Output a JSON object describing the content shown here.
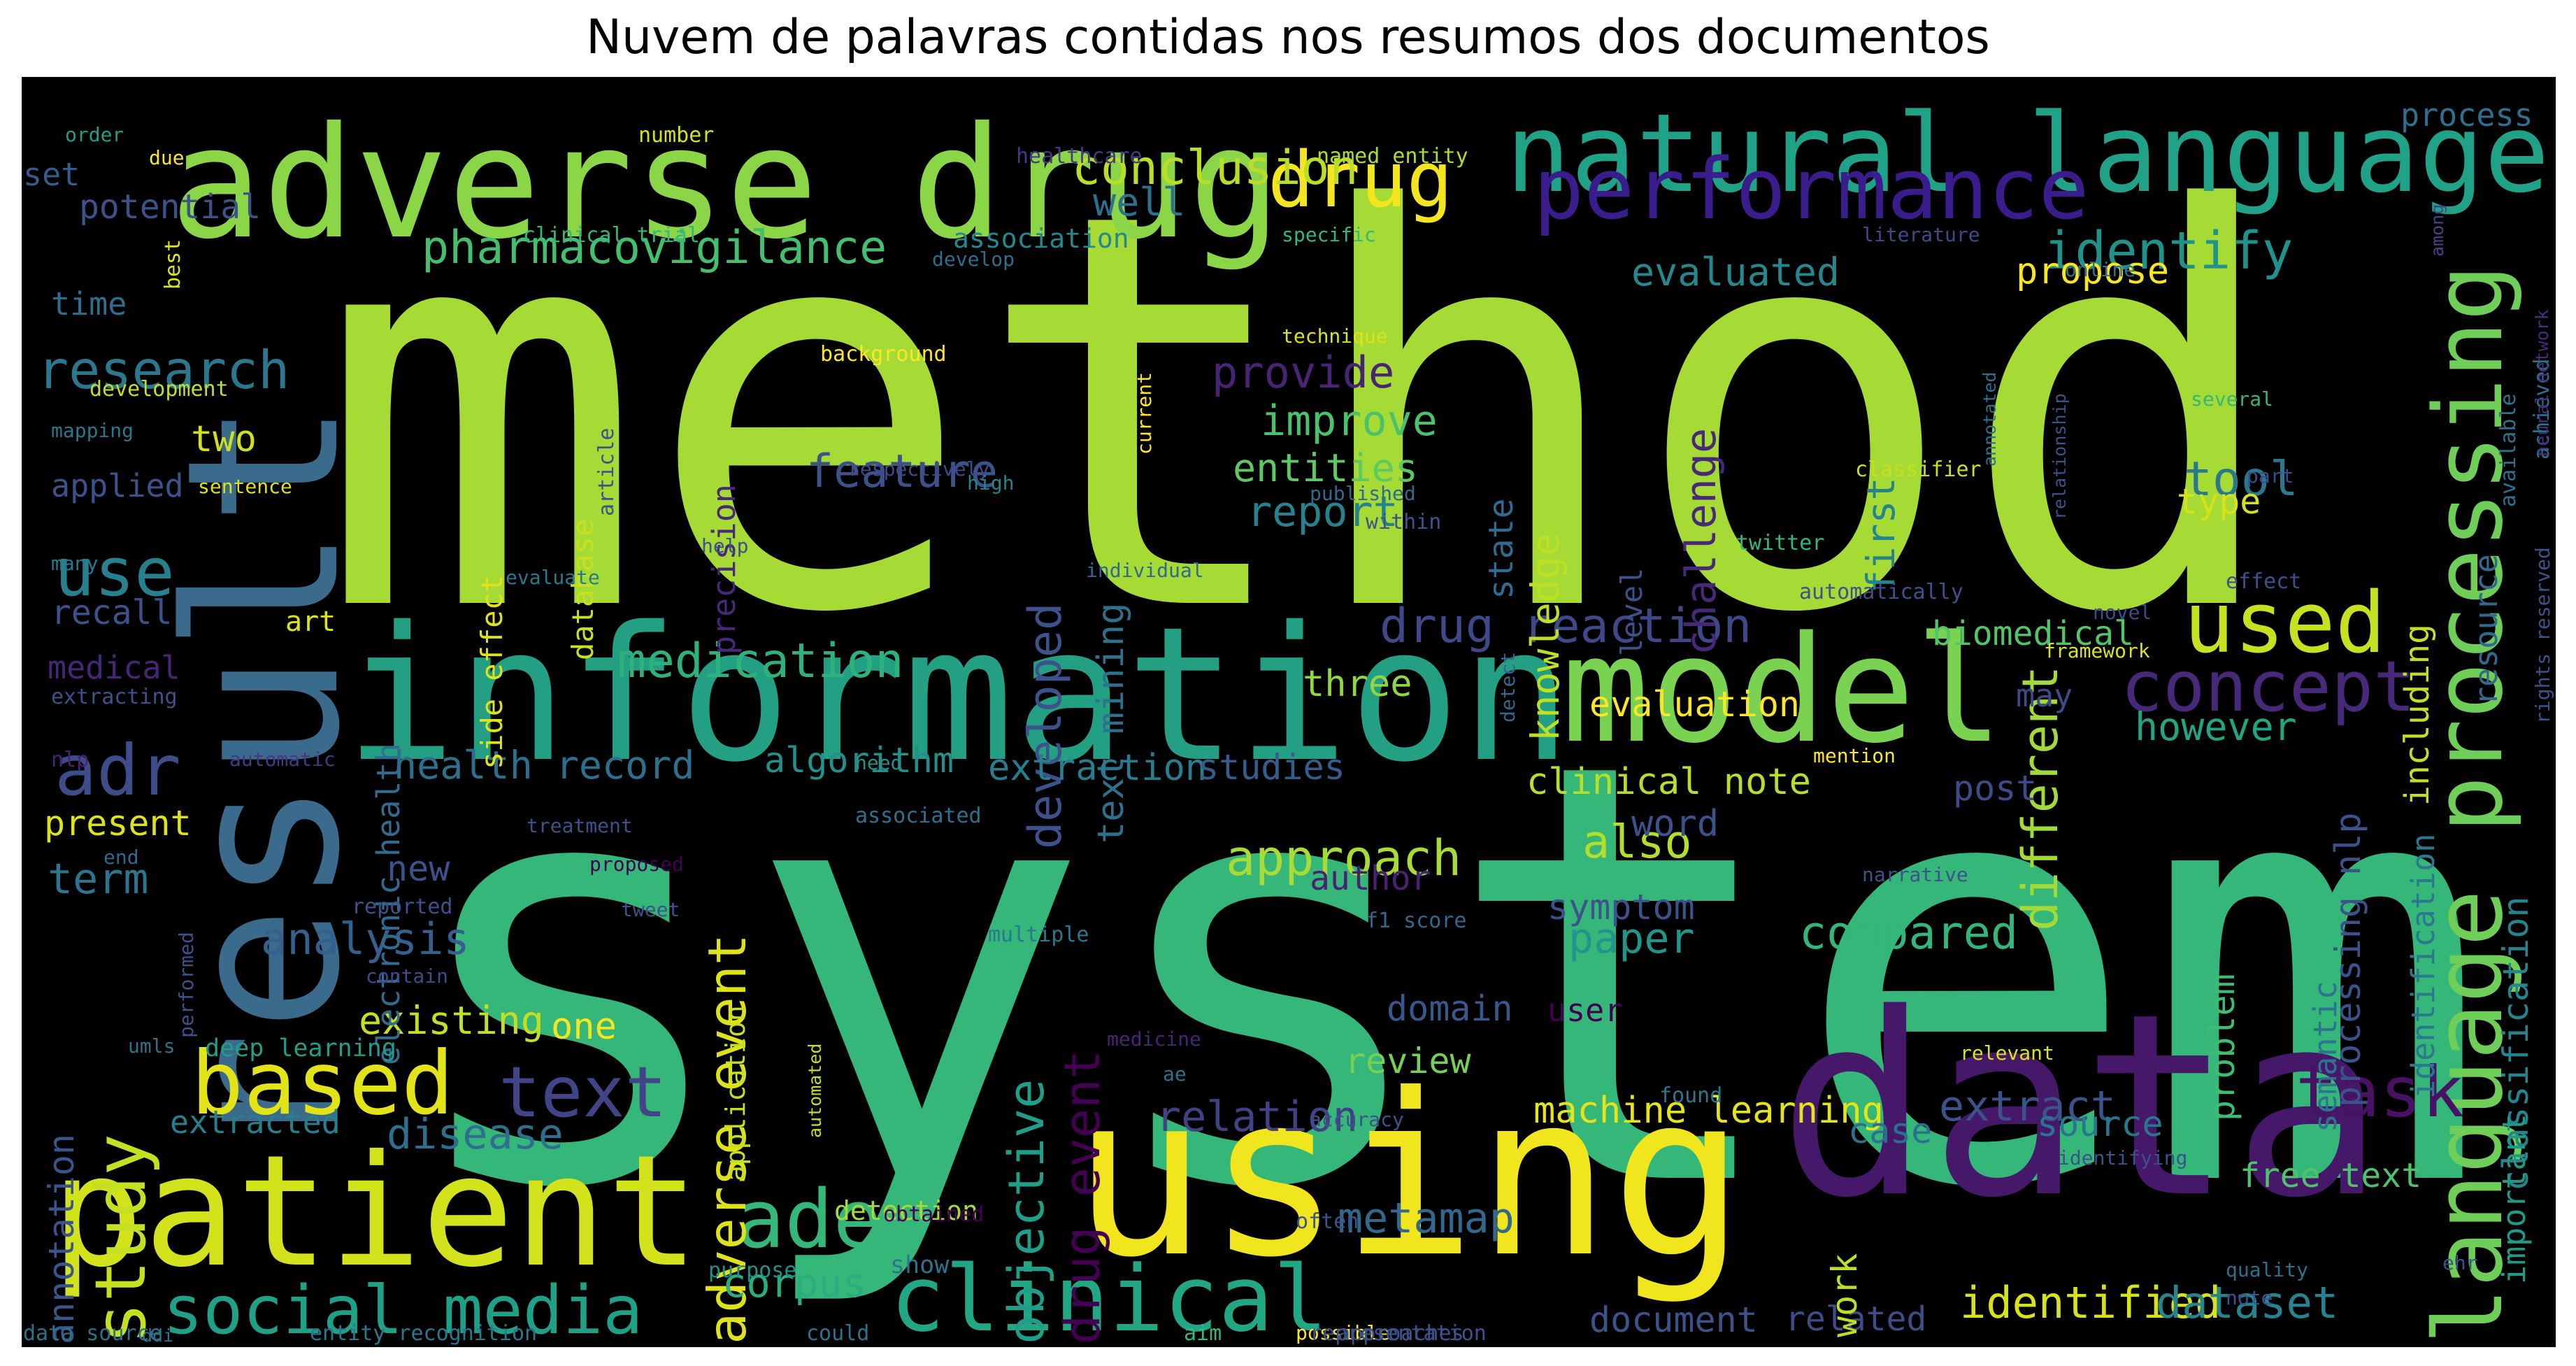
{
  "title": "Nuvem de palavras contidas nos resumos dos documentos",
  "words": [
    {
      "t": "method",
      "c": "#a6db35"
    },
    {
      "t": "system",
      "c": "#35b779"
    },
    {
      "t": "result",
      "c": "#3a6a8c"
    },
    {
      "t": "data",
      "c": "#46186a"
    },
    {
      "t": "information",
      "c": "#23a083"
    },
    {
      "t": "using",
      "c": "#f1e51d"
    },
    {
      "t": "patient",
      "c": "#d2e21b"
    },
    {
      "t": "adverse drug",
      "c": "#8bd646"
    },
    {
      "t": "model",
      "c": "#7ad251"
    },
    {
      "t": "natural language",
      "c": "#1fa288"
    },
    {
      "t": "language processing",
      "c": "#6ece58"
    },
    {
      "t": "performance",
      "c": "#3b1c8c"
    },
    {
      "t": "drug",
      "c": "#f4e61e"
    },
    {
      "t": "clinical",
      "c": "#22a785"
    },
    {
      "t": "used",
      "c": "#c7e020"
    },
    {
      "t": "concept",
      "c": "#482878"
    },
    {
      "t": "based",
      "c": "#e2e418"
    },
    {
      "t": "study",
      "c": "#c5e021"
    },
    {
      "t": "text",
      "c": "#414487"
    },
    {
      "t": "ade",
      "c": "#35b779"
    },
    {
      "t": "social media",
      "c": "#1fa187"
    },
    {
      "t": "task",
      "c": "#471164"
    },
    {
      "t": "adr",
      "c": "#3e4c8a"
    },
    {
      "t": "use",
      "c": "#26818e"
    },
    {
      "t": "research",
      "c": "#2a788e"
    },
    {
      "t": "conclusion",
      "c": "#bade28"
    },
    {
      "t": "pharmacovigilance",
      "c": "#44bf70"
    },
    {
      "t": "identify",
      "c": "#20928c"
    },
    {
      "t": "medication",
      "c": "#2db27d"
    },
    {
      "t": "drug reaction",
      "c": "#3f4889"
    },
    {
      "t": "provide",
      "c": "#482475"
    },
    {
      "t": "improve",
      "c": "#4ac16d"
    },
    {
      "t": "entities",
      "c": "#5ec962"
    },
    {
      "t": "report",
      "c": "#26828e"
    },
    {
      "t": "feature",
      "c": "#3b528b"
    },
    {
      "t": "developed",
      "c": "#3b528b"
    },
    {
      "t": "text mining",
      "c": "#2c728e"
    },
    {
      "t": "challenge",
      "c": "#482878"
    },
    {
      "t": "knowledge",
      "c": "#bddf26"
    },
    {
      "t": "state",
      "c": "#2f6b8e"
    },
    {
      "t": "first",
      "c": "#25838e"
    },
    {
      "t": "different",
      "c": "#a2da37"
    },
    {
      "t": "tool",
      "c": "#2a788e"
    },
    {
      "t": "evaluated",
      "c": "#23898e"
    },
    {
      "t": "propose",
      "c": "#f8e621"
    },
    {
      "t": "well",
      "c": "#2c718e"
    },
    {
      "t": "adverse event",
      "c": "#dde318"
    },
    {
      "t": "drug event",
      "c": "#440154"
    },
    {
      "t": "objective",
      "c": "#1f9e89"
    },
    {
      "t": "approach",
      "c": "#a8db34"
    },
    {
      "t": "also",
      "c": "#b5de2b"
    },
    {
      "t": "paper",
      "c": "#1f968b"
    },
    {
      "t": "compared",
      "c": "#32b67a"
    },
    {
      "t": "machine learning",
      "c": "#e5e419"
    },
    {
      "t": "relation",
      "c": "#424186"
    },
    {
      "t": "extract",
      "c": "#3a538b"
    },
    {
      "t": "identified",
      "c": "#d8e219"
    },
    {
      "t": "dataset",
      "c": "#25848e"
    },
    {
      "t": "document",
      "c": "#3b528b"
    },
    {
      "t": "related",
      "c": "#3d4d8a"
    },
    {
      "t": "metamap",
      "c": "#31688e"
    },
    {
      "t": "corpus",
      "c": "#29af7f"
    },
    {
      "t": "analysis",
      "c": "#355f8d"
    },
    {
      "t": "disease",
      "c": "#2d708e"
    },
    {
      "t": "existing",
      "c": "#c2df23"
    },
    {
      "t": "one",
      "c": "#f6e620"
    },
    {
      "t": "extracted",
      "c": "#277f8e"
    },
    {
      "t": "annotation",
      "c": "#3a548c"
    },
    {
      "t": "present",
      "c": "#dde318"
    },
    {
      "t": "term",
      "c": "#2b758e"
    },
    {
      "t": "new",
      "c": "#3b528b"
    },
    {
      "t": "health record",
      "c": "#2d708e"
    },
    {
      "t": "algorithm",
      "c": "#21918c"
    },
    {
      "t": "extraction",
      "c": "#287d8e"
    },
    {
      "t": "studies",
      "c": "#365c8d"
    },
    {
      "t": "clinical note",
      "c": "#b8de29"
    },
    {
      "t": "evaluation",
      "c": "#fde725"
    },
    {
      "t": "three",
      "c": "#8fd744"
    },
    {
      "t": "however",
      "c": "#21a685"
    },
    {
      "t": "post",
      "c": "#3e4a89"
    },
    {
      "t": "word",
      "c": "#3b528b"
    },
    {
      "t": "symptom",
      "c": "#3b528b"
    },
    {
      "t": "author",
      "c": "#482173"
    },
    {
      "t": "domain",
      "c": "#38588c"
    },
    {
      "t": "user",
      "c": "#440154"
    },
    {
      "t": "review",
      "c": "#75d054"
    },
    {
      "t": "case",
      "c": "#2d708e"
    },
    {
      "t": "source",
      "c": "#2a768e"
    },
    {
      "t": "work",
      "c": "#bddf26"
    },
    {
      "t": "free text",
      "c": "#4ec36b"
    },
    {
      "t": "biomedical",
      "c": "#52c569"
    },
    {
      "t": "may",
      "c": "#3e4989"
    },
    {
      "t": "problem",
      "c": "#3fbc73"
    },
    {
      "t": "semantic",
      "c": "#2c738e"
    },
    {
      "t": "processing nlp",
      "c": "#3b528b"
    },
    {
      "t": "identification",
      "c": "#2a788e"
    },
    {
      "t": "classification",
      "c": "#25858e"
    },
    {
      "t": "important",
      "c": "#1f9a8a"
    },
    {
      "t": "including",
      "c": "#c0df25"
    },
    {
      "t": "resource",
      "c": "#31688e"
    },
    {
      "t": "type",
      "c": "#d5e21a"
    },
    {
      "t": "process",
      "c": "#2e6e8e"
    },
    {
      "t": "electronic health",
      "c": "#2f6c8e"
    },
    {
      "t": "precision",
      "c": "#482878"
    },
    {
      "t": "database",
      "c": "#c8e020"
    },
    {
      "t": "side effect",
      "c": "#dfe318"
    },
    {
      "t": "level",
      "c": "#3b528b"
    },
    {
      "t": "two",
      "c": "#d0e11c"
    },
    {
      "t": "time",
      "c": "#2f6c8e"
    },
    {
      "t": "applied",
      "c": "#3b528b"
    },
    {
      "t": "recall",
      "c": "#3a538b"
    },
    {
      "t": "medical",
      "c": "#482677"
    },
    {
      "t": "art",
      "c": "#dce319"
    },
    {
      "t": "potential",
      "c": "#3b528b"
    },
    {
      "t": "set",
      "c": "#38598c"
    },
    {
      "t": "application",
      "c": "#c5e021"
    },
    {
      "t": "detection",
      "c": "#a5db36"
    },
    {
      "t": "show",
      "c": "#2c738e"
    },
    {
      "t": "deep learning",
      "c": "#1f9e89"
    },
    {
      "t": "association",
      "c": "#23898e"
    },
    {
      "t": "clinical trial",
      "c": "#35b779"
    },
    {
      "t": "specific",
      "c": "#35b779"
    },
    {
      "t": "named entity",
      "c": "#addc30"
    },
    {
      "t": "healthcare",
      "c": "#443a83"
    },
    {
      "t": "number",
      "c": "#d5e21a"
    },
    {
      "t": "order",
      "c": "#1f9e89"
    },
    {
      "t": "due",
      "c": "#fde725"
    },
    {
      "t": "best",
      "c": "#dde318"
    },
    {
      "t": "develop",
      "c": "#2e6e8e"
    },
    {
      "t": "literature",
      "c": "#3e4a89"
    },
    {
      "t": "online",
      "c": "#2c728e"
    },
    {
      "t": "technique",
      "c": "#dce319"
    },
    {
      "t": "background",
      "c": "#fde725"
    },
    {
      "t": "development",
      "c": "#c0df25"
    },
    {
      "t": "mapping",
      "c": "#2a788e"
    },
    {
      "t": "article",
      "c": "#3a538b"
    },
    {
      "t": "sentence",
      "c": "#dde318"
    },
    {
      "t": "respectively",
      "c": "#3e4a89"
    },
    {
      "t": "high",
      "c": "#26828e"
    },
    {
      "t": "current",
      "c": "#fde725"
    },
    {
      "t": "annotated",
      "c": "#2d708e"
    },
    {
      "t": "classifier",
      "c": "#c5e021"
    },
    {
      "t": "relationship",
      "c": "#3b528b"
    },
    {
      "t": "published",
      "c": "#31688e"
    },
    {
      "t": "within",
      "c": "#3b528b"
    },
    {
      "t": "several",
      "c": "#35b779"
    },
    {
      "t": "part",
      "c": "#3e4a89"
    },
    {
      "t": "twitter",
      "c": "#35b779"
    },
    {
      "t": "available",
      "c": "#2d708e"
    },
    {
      "t": "achieved",
      "c": "#2c728e"
    },
    {
      "t": "among",
      "c": "#414487"
    },
    {
      "t": "neural network",
      "c": "#472d7b"
    },
    {
      "t": "rights reserved",
      "c": "#3b528b"
    },
    {
      "t": "help",
      "c": "#3b528b"
    },
    {
      "t": "evaluate",
      "c": "#2a788e"
    },
    {
      "t": "individual",
      "c": "#31688e"
    },
    {
      "t": "automatically",
      "c": "#3b528b"
    },
    {
      "t": "effect",
      "c": "#3b528b"
    },
    {
      "t": "novel",
      "c": "#3e4a89"
    },
    {
      "t": "framework",
      "c": "#dde318"
    },
    {
      "t": "many",
      "c": "#2a788e"
    },
    {
      "t": "extracting",
      "c": "#3b528b"
    },
    {
      "t": "nlp",
      "c": "#482475"
    },
    {
      "t": "automatic",
      "c": "#443a83"
    },
    {
      "t": "need",
      "c": "#21918c"
    },
    {
      "t": "mention",
      "c": "#fde725"
    },
    {
      "t": "detect",
      "c": "#31688e"
    },
    {
      "t": "associated",
      "c": "#2c728e"
    },
    {
      "t": "treatment",
      "c": "#3b528b"
    },
    {
      "t": "proposed",
      "c": "#440154"
    },
    {
      "t": "end",
      "c": "#31688e"
    },
    {
      "t": "reported",
      "c": "#3b528b"
    },
    {
      "t": "tweet",
      "c": "#3b528b"
    },
    {
      "t": "narrative",
      "c": "#3b528b"
    },
    {
      "t": "performed",
      "c": "#3b528b"
    },
    {
      "t": "f1 score",
      "c": "#31688e"
    },
    {
      "t": "multiple",
      "c": "#2a788e"
    },
    {
      "t": "contain",
      "c": "#3e4a89"
    },
    {
      "t": "umls",
      "c": "#2c728e"
    },
    {
      "t": "medicine",
      "c": "#482475"
    },
    {
      "t": "ae",
      "c": "#2c728e"
    },
    {
      "t": "automated",
      "c": "#c0df25"
    },
    {
      "t": "relevant",
      "c": "#dce319"
    },
    {
      "t": "accuracy",
      "c": "#3b528b"
    },
    {
      "t": "found",
      "c": "#2a788e"
    },
    {
      "t": "identifying",
      "c": "#3b528b"
    },
    {
      "t": "often",
      "c": "#3b528b"
    },
    {
      "t": "obtained",
      "c": "#440154"
    },
    {
      "t": "purpose",
      "c": "#21918c"
    },
    {
      "t": "quality",
      "c": "#2d708e"
    },
    {
      "t": "note",
      "c": "#3b528b"
    },
    {
      "t": "ehr",
      "c": "#3b528b"
    },
    {
      "t": "ddi",
      "c": "#2c728e"
    },
    {
      "t": "possible",
      "c": "#fde725"
    },
    {
      "t": "representation",
      "c": "#3b528b"
    },
    {
      "t": "could",
      "c": "#2c728e"
    },
    {
      "t": "aim",
      "c": "#35b779"
    },
    {
      "t": "approaches",
      "c": "#3b528b"
    },
    {
      "t": "data source",
      "c": "#2c728e"
    },
    {
      "t": "entity recognition",
      "c": "#2a788e"
    }
  ]
}
